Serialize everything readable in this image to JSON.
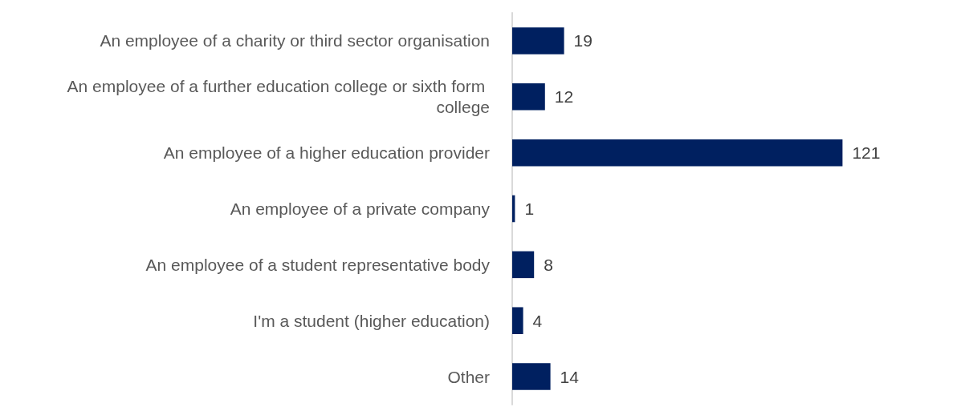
{
  "chart_data": {
    "type": "bar",
    "orientation": "horizontal",
    "categories": [
      "An employee of a charity or third sector organisation",
      "An employee of a further education college or sixth form college",
      "An employee of a higher education provider",
      "An employee of a private company",
      "An employee of a student representative body",
      "I'm a student (higher education)",
      "Other"
    ],
    "values": [
      19,
      12,
      121,
      1,
      8,
      4,
      14
    ],
    "color": "#002060",
    "data_labels": true
  }
}
